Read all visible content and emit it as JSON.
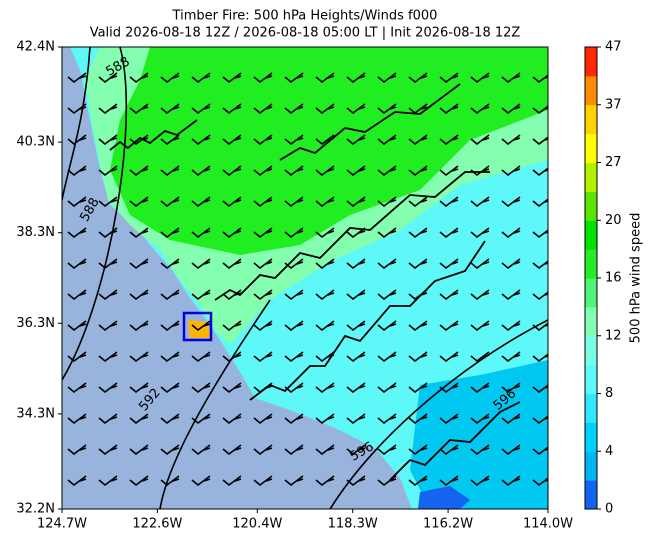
{
  "title": [
    "Timber Fire: 500 hPa Heights/Winds f000",
    "Valid 2026-08-18 12Z / 2026-08-18 05:00 LT | Init 2026-08-18 12Z"
  ],
  "xlim": [
    -124.7,
    -114.0
  ],
  "ylim": [
    32.2,
    42.4
  ],
  "xticks": [
    {
      "value": -124.7,
      "label": "124.7W"
    },
    {
      "value": -122.6,
      "label": "122.6W"
    },
    {
      "value": -120.4,
      "label": "120.4W"
    },
    {
      "value": -118.3,
      "label": "118.3W"
    },
    {
      "value": -116.2,
      "label": "116.2W"
    },
    {
      "value": -114.0,
      "label": "114.0W"
    }
  ],
  "yticks": [
    {
      "value": 32.2,
      "label": "32.2N"
    },
    {
      "value": 34.3,
      "label": "34.3N"
    },
    {
      "value": 36.3,
      "label": "36.3N"
    },
    {
      "value": 38.3,
      "label": "38.3N"
    },
    {
      "value": 40.3,
      "label": "40.3N"
    },
    {
      "value": 42.4,
      "label": "42.4N"
    }
  ],
  "colorbar": {
    "label": "500 hPa wind speed",
    "ticks": [
      0,
      4,
      8,
      12,
      16,
      20,
      27,
      37,
      47
    ],
    "colors": [
      "#1464f0",
      "#00b4f0",
      "#00d2ff",
      "#32e6ff",
      "#5afafa",
      "#78ffe6",
      "#82ffb4",
      "#50f578",
      "#28eb28",
      "#00e100",
      "#5ae600",
      "#b4f000",
      "#ffff00",
      "#ffd200",
      "#ff8c00",
      "#ff2800"
    ]
  },
  "contour_labels": [
    "588",
    "588",
    "592",
    "596",
    "596"
  ]
}
